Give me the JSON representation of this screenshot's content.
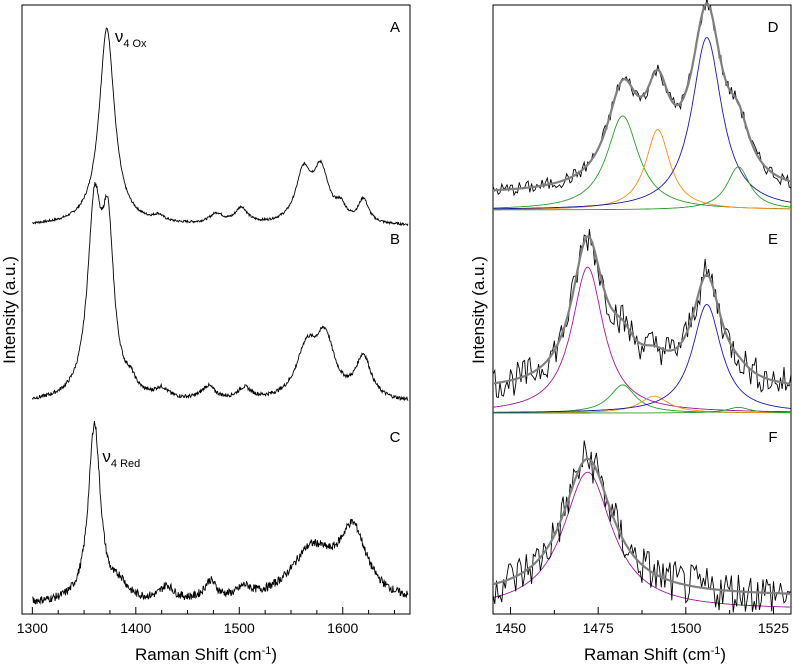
{
  "chart_data": [
    {
      "type": "line",
      "panel": "left",
      "xlabel": "Raman Shift (cm",
      "xlabel_sup": "-1",
      "xlabel_tail": ")",
      "ylabel": "Intensity (a.u.)",
      "xlim": [
        1290,
        1665
      ],
      "xticks": [
        "1300",
        "1400",
        "1500",
        "1600"
      ],
      "xtick_values": [
        1300,
        1400,
        1500,
        1600
      ],
      "spectra": [
        {
          "label": "A",
          "annotation": {
            "base": "ν",
            "sub": "4 Ox",
            "at_x": 1372
          },
          "baseline_rel": 0,
          "noise": 0.006,
          "peaks": [
            {
              "x": 1372,
              "h": 1.0,
              "w": 9
            },
            {
              "x": 1422,
              "h": 0.03,
              "w": 6
            },
            {
              "x": 1478,
              "h": 0.05,
              "w": 8
            },
            {
              "x": 1502,
              "h": 0.08,
              "w": 7
            },
            {
              "x": 1562,
              "h": 0.25,
              "w": 9
            },
            {
              "x": 1579,
              "h": 0.26,
              "w": 9
            },
            {
              "x": 1598,
              "h": 0.07,
              "w": 6
            },
            {
              "x": 1620,
              "h": 0.12,
              "w": 6
            }
          ]
        },
        {
          "label": "B",
          "baseline_rel": 0,
          "noise": 0.01,
          "peaks": [
            {
              "x": 1360,
              "h": 0.95,
              "w": 8
            },
            {
              "x": 1373,
              "h": 0.8,
              "w": 7
            },
            {
              "x": 1395,
              "h": 0.06,
              "w": 6
            },
            {
              "x": 1425,
              "h": 0.05,
              "w": 8
            },
            {
              "x": 1470,
              "h": 0.07,
              "w": 8
            },
            {
              "x": 1505,
              "h": 0.06,
              "w": 8
            },
            {
              "x": 1565,
              "h": 0.25,
              "w": 12
            },
            {
              "x": 1583,
              "h": 0.3,
              "w": 11
            },
            {
              "x": 1620,
              "h": 0.22,
              "w": 9
            }
          ]
        },
        {
          "label": "C",
          "annotation": {
            "base": "ν",
            "sub": "4 Red",
            "at_x": 1360
          },
          "baseline_rel": 0,
          "noise": 0.02,
          "peaks": [
            {
              "x": 1360,
              "h": 0.88,
              "w": 7
            },
            {
              "x": 1385,
              "h": 0.07,
              "w": 8
            },
            {
              "x": 1430,
              "h": 0.07,
              "w": 8
            },
            {
              "x": 1472,
              "h": 0.09,
              "w": 7
            },
            {
              "x": 1505,
              "h": 0.05,
              "w": 8
            },
            {
              "x": 1570,
              "h": 0.25,
              "w": 25
            },
            {
              "x": 1610,
              "h": 0.33,
              "w": 16
            }
          ]
        }
      ]
    },
    {
      "type": "line",
      "panel": "right",
      "xlabel": "Raman Shift (cm",
      "xlabel_sup": "-1",
      "xlabel_tail": ")",
      "ylabel": "Intensity (a.u.)",
      "xlim": [
        1445,
        1530
      ],
      "xticks": [
        "1450",
        "1475",
        "1500",
        "1525"
      ],
      "xtick_values": [
        1450,
        1475,
        1500,
        1525
      ],
      "subpanels": [
        {
          "label": "D",
          "offset": 0.08,
          "noise": 0.035,
          "components": [
            {
              "x": 1482,
              "h": 0.48,
              "w": 5.5,
              "color": "#2a9a2a"
            },
            {
              "x": 1492,
              "h": 0.41,
              "w": 4.2,
              "color": "#f0901e"
            },
            {
              "x": 1506,
              "h": 0.88,
              "w": 5.2,
              "color": "#1a1a9a"
            },
            {
              "x": 1515,
              "h": 0.22,
              "w": 4.0,
              "color": "#2a9a2a"
            }
          ]
        },
        {
          "label": "E",
          "offset": 0.12,
          "noise": 0.09,
          "components": [
            {
              "x": 1472,
              "h": 0.78,
              "w": 5.5,
              "color": "#9a1a9a"
            },
            {
              "x": 1482,
              "h": 0.15,
              "w": 4.5,
              "color": "#2a9a2a"
            },
            {
              "x": 1491,
              "h": 0.09,
              "w": 5.0,
              "color": "#f0901e"
            },
            {
              "x": 1506,
              "h": 0.58,
              "w": 5.0,
              "color": "#1a1a9a"
            },
            {
              "x": 1515,
              "h": 0.03,
              "w": 4.0,
              "color": "#2a9a2a"
            }
          ]
        },
        {
          "label": "F",
          "offset": 0.08,
          "noise": 0.13,
          "components": [
            {
              "x": 1472,
              "h": 0.82,
              "w": 8.5,
              "color": "#9a1a9a"
            }
          ]
        }
      ]
    }
  ]
}
